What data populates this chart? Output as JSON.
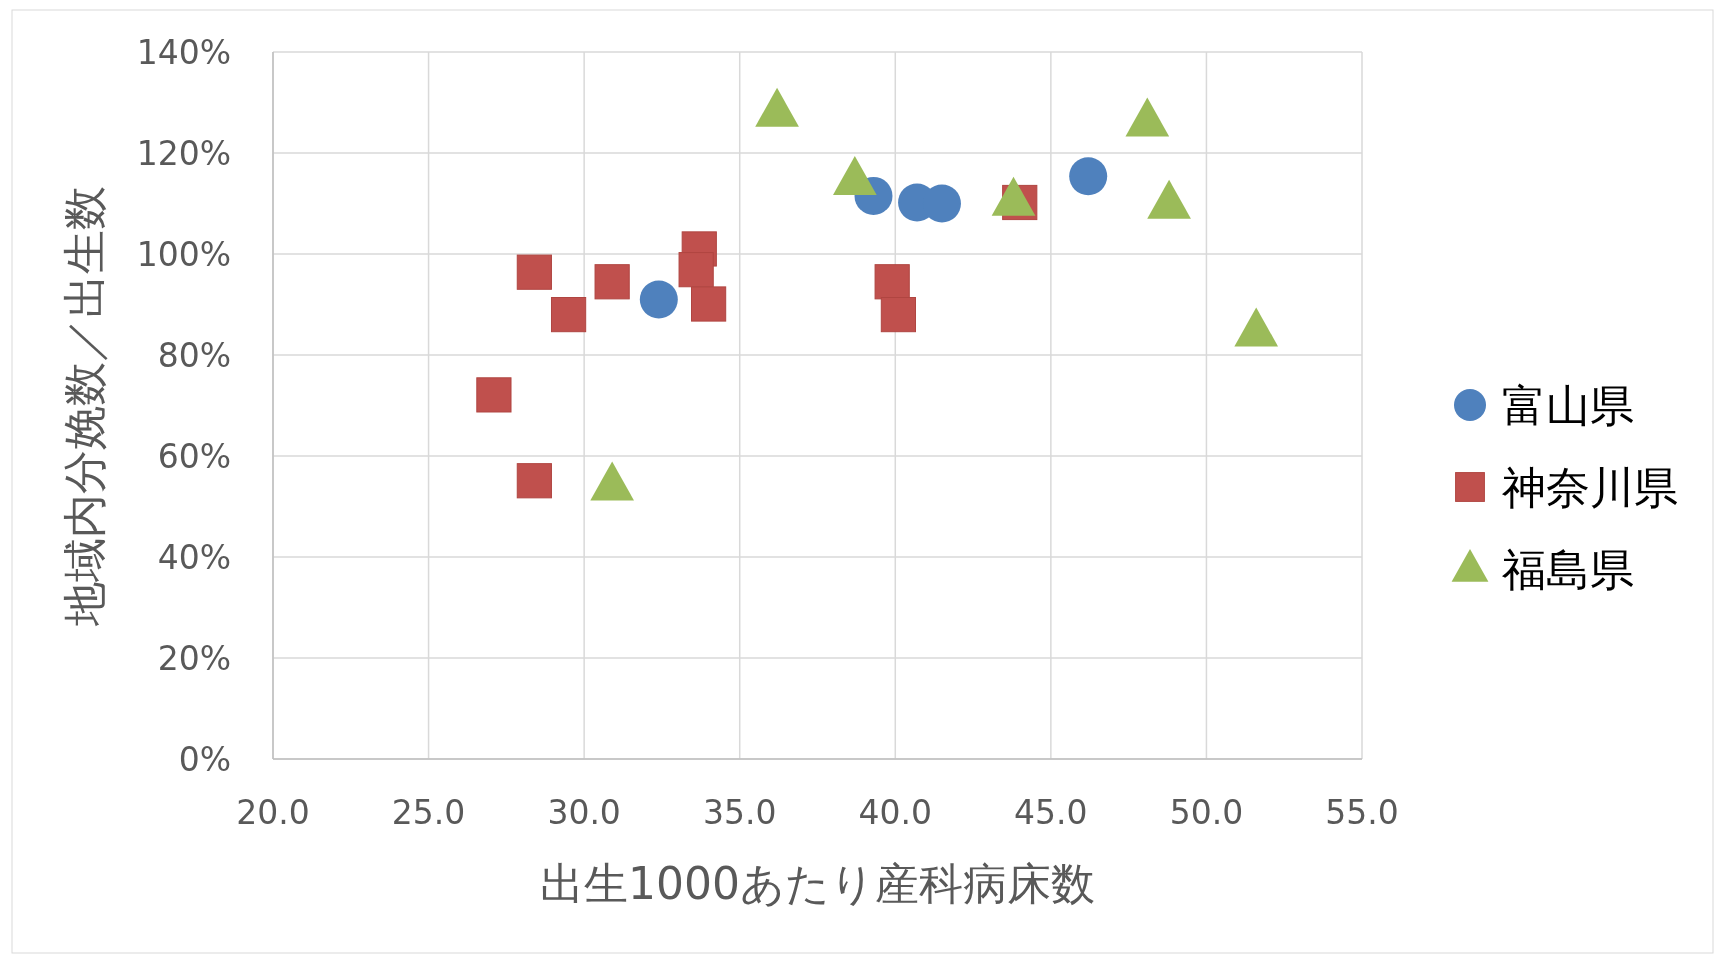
{
  "chart_data": {
    "type": "scatter",
    "xlabel": "出生1000あたり産科病床数",
    "ylabel": "地域内分娩数／出生数",
    "xlim": [
      20,
      55
    ],
    "xticks": [
      {
        "value": 20,
        "label": "20.0"
      },
      {
        "value": 25,
        "label": "25.0"
      },
      {
        "value": 30,
        "label": "30.0"
      },
      {
        "value": 35,
        "label": "35.0"
      },
      {
        "value": 40,
        "label": "40.0"
      },
      {
        "value": 45,
        "label": "45.0"
      },
      {
        "value": 50,
        "label": "50.0"
      },
      {
        "value": 55,
        "label": "55.0"
      }
    ],
    "ylim": [
      0,
      140
    ],
    "yticks": [
      {
        "value": 0,
        "label": "0%"
      },
      {
        "value": 20,
        "label": "20%"
      },
      {
        "value": 40,
        "label": "40%"
      },
      {
        "value": 60,
        "label": "60%"
      },
      {
        "value": 80,
        "label": "80%"
      },
      {
        "value": 100,
        "label": "100%"
      },
      {
        "value": 120,
        "label": "120%"
      },
      {
        "value": 140,
        "label": "140%"
      }
    ],
    "grid": true,
    "legend": "right",
    "series": [
      {
        "name": "富山県",
        "color": "#4f81bd",
        "marker": "circle",
        "x": [
          32.4,
          39.3,
          40.7,
          41.5,
          46.2
        ],
        "values": [
          91,
          111.5,
          110.2,
          110,
          115.4
        ]
      },
      {
        "name": "神奈川県",
        "color": "#c0504d",
        "marker": "square",
        "x": [
          27.1,
          28.4,
          28.4,
          29.5,
          30.9,
          33.7,
          33.6,
          34.0,
          39.9,
          40.1,
          44.0
        ],
        "values": [
          72.1,
          55.1,
          96.4,
          88.0,
          94.5,
          101.0,
          96.9,
          90.1,
          94.5,
          88.0,
          110.2
        ]
      },
      {
        "name": "福島県",
        "color": "#9bbb59",
        "marker": "triangle",
        "x": [
          30.9,
          36.2,
          38.7,
          43.8,
          48.1,
          48.8,
          51.6
        ],
        "values": [
          54.2,
          128.2,
          114.7,
          110.6,
          126.3,
          110,
          84.7
        ]
      }
    ]
  }
}
